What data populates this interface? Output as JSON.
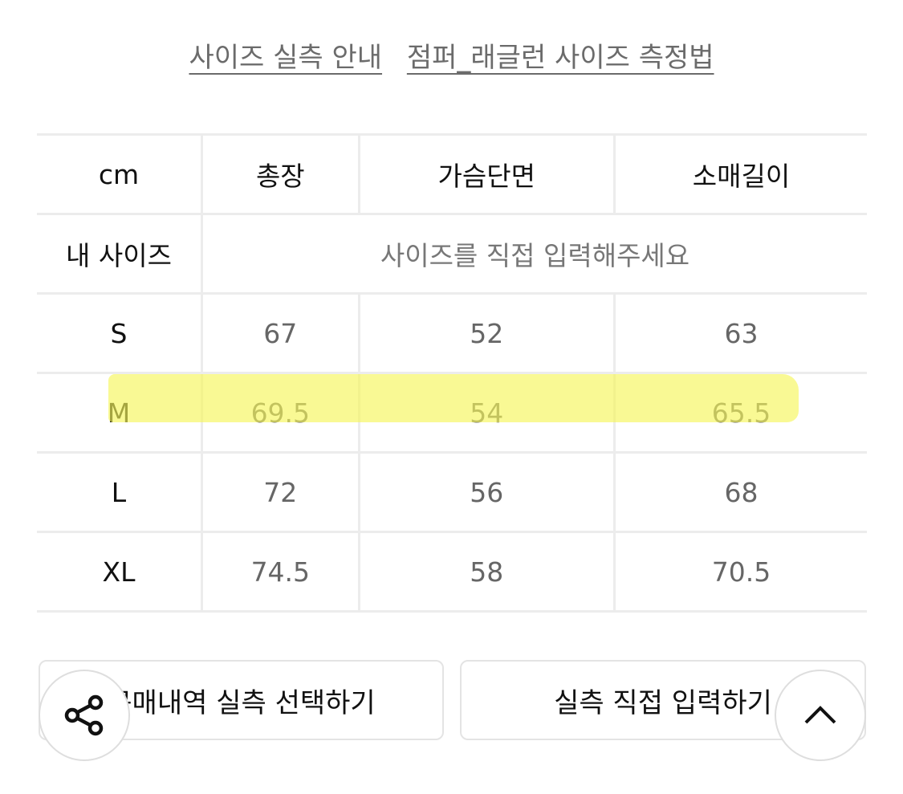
{
  "links": [
    "사이즈 실측 안내",
    "점퍼_래글런 사이즈 측정법"
  ],
  "table": {
    "unit": "cm",
    "columns": [
      "총장",
      "가슴단면",
      "소매길이"
    ],
    "my_size": {
      "label": "내 사이즈",
      "placeholder": "사이즈를 직접 입력해주세요"
    },
    "rows": [
      {
        "size": "S",
        "values": [
          "67",
          "52",
          "63"
        ]
      },
      {
        "size": "M",
        "values": [
          "69.5",
          "54",
          "65.5"
        ]
      },
      {
        "size": "L",
        "values": [
          "72",
          "56",
          "68"
        ]
      },
      {
        "size": "XL",
        "values": [
          "74.5",
          "58",
          "70.5"
        ]
      }
    ],
    "highlighted_row": "M",
    "highlight_color": "#f6f65a"
  },
  "buttons": {
    "purchase": "구매내역 실측 선택하기",
    "manual": "실측 직접 입력하기"
  },
  "floating": {
    "share": "share-icon",
    "top": "chevron-up-icon"
  }
}
